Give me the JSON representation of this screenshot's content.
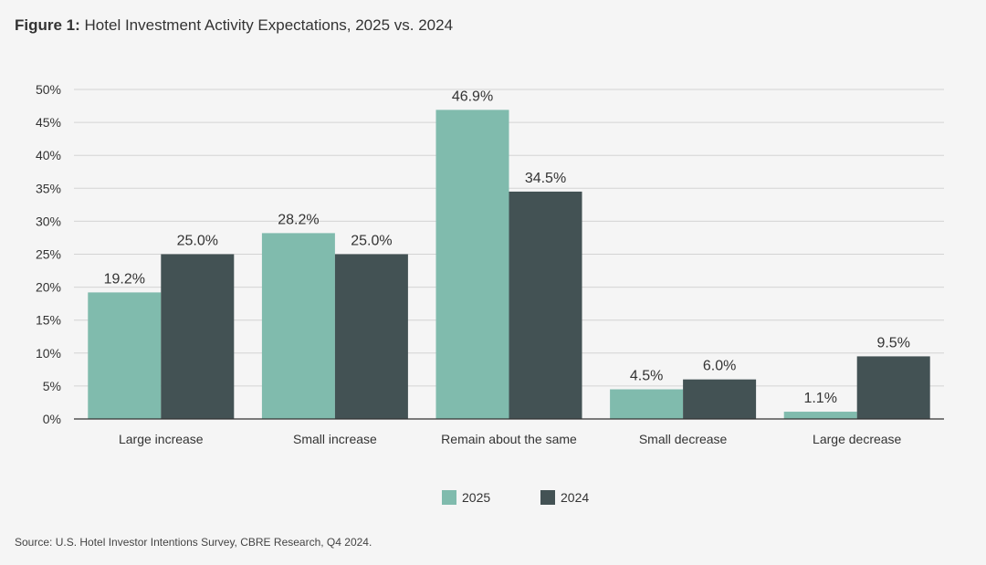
{
  "title": {
    "prefix": "Figure 1:",
    "text": "Hotel Investment Activity Expectations, 2025 vs. 2024"
  },
  "source": "Source: U.S. Hotel Investor Intentions Survey, CBRE Research, Q4 2024.",
  "colors": {
    "series_2025": "#80bbad",
    "series_2024": "#435254",
    "grid": "#d4d4d4",
    "axis": "#333333",
    "background": "#f5f5f5"
  },
  "chart_data": {
    "type": "bar",
    "title": "Hotel Investment Activity Expectations, 2025 vs. 2024",
    "categories": [
      "Large increase",
      "Small increase",
      "Remain about the same",
      "Small decrease",
      "Large decrease"
    ],
    "series": [
      {
        "name": "2025",
        "values": [
          19.2,
          28.2,
          46.9,
          4.5,
          1.1
        ],
        "labels": [
          "19.2%",
          "28.2%",
          "46.9%",
          "4.5%",
          "1.1%"
        ]
      },
      {
        "name": "2024",
        "values": [
          25.0,
          25.0,
          34.5,
          6.0,
          9.5
        ],
        "labels": [
          "25.0%",
          "25.0%",
          "34.5%",
          "6.0%",
          "9.5%"
        ]
      }
    ],
    "ylim": [
      0,
      50
    ],
    "yticks": [
      "0%",
      "5%",
      "10%",
      "15%",
      "20%",
      "25%",
      "30%",
      "35%",
      "40%",
      "45%",
      "50%"
    ],
    "grid": true,
    "legend_position": "bottom-center",
    "xlabel": "",
    "ylabel": ""
  }
}
